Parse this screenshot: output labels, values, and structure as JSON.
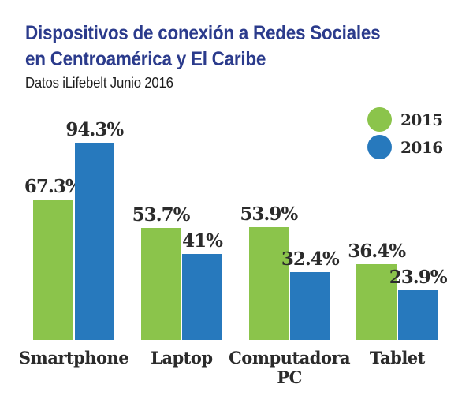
{
  "header": {
    "title_line1": "Dispositivos de conexión a Redes Sociales",
    "title_line2": "en Centroamérica y El Caribe",
    "subtitle": "Datos iLifebelt Junio 2016",
    "title_color": "#2B3B8C"
  },
  "colors": {
    "series_2015": "#8BC44B",
    "series_2016": "#2779BD",
    "label_text": "#2B2B2B",
    "background": "#FFFFFF"
  },
  "chart_data": {
    "type": "bar",
    "title": "Dispositivos de conexión a Redes Sociales en Centroamérica y El Caribe",
    "subtitle": "Datos iLifebelt Junio 2016",
    "categories": [
      "Smartphone",
      "Laptop",
      "Computadora PC",
      "Tablet"
    ],
    "category_display": [
      "Smartphone",
      "Laptop",
      "Computadora\nPC",
      "Tablet"
    ],
    "series": [
      {
        "name": "2015",
        "color": "#8BC44B",
        "values": [
          67.3,
          53.7,
          53.9,
          36.4
        ],
        "labels": [
          "67.3%",
          "53.7%",
          "53.9%",
          "36.4%"
        ]
      },
      {
        "name": "2016",
        "color": "#2779BD",
        "values": [
          94.3,
          41,
          32.4,
          23.9
        ],
        "labels": [
          "94.3%",
          "41%",
          "32.4%",
          "23.9%"
        ]
      }
    ],
    "xlabel": "",
    "ylabel": "",
    "ylim": [
      0,
      100
    ],
    "grid": false,
    "legend_position": "top-right",
    "value_labels_shown": true
  }
}
